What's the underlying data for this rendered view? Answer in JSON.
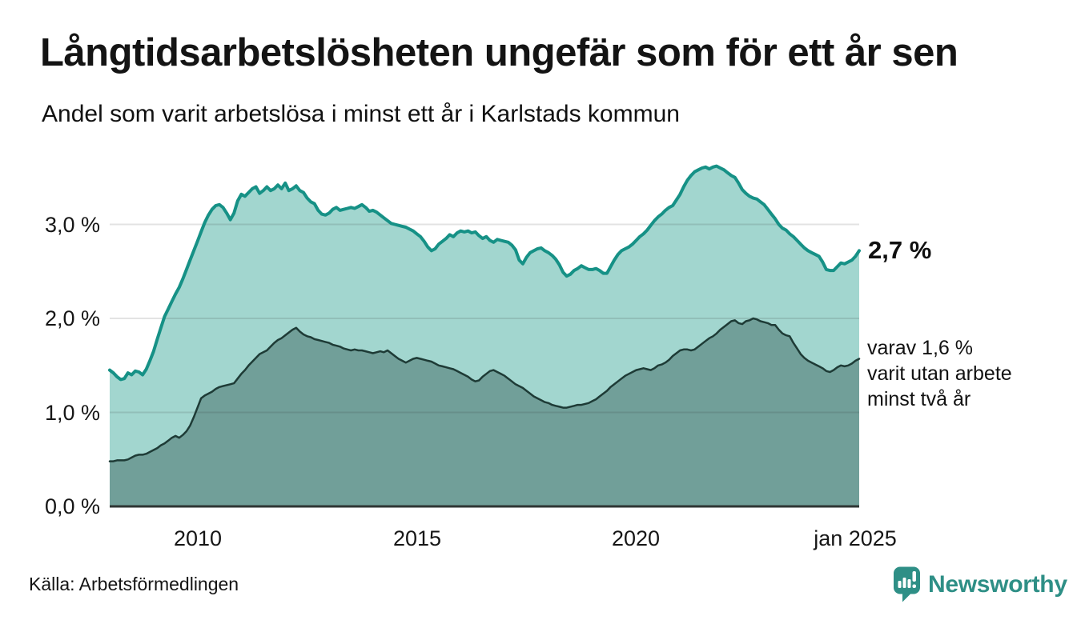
{
  "header": {
    "title": "Långtidsarbetslösheten ungefär som för ett år sen",
    "subtitle": "Andel som varit arbetslösa i minst ett år i Karlstads kommun"
  },
  "chart_data": {
    "type": "area",
    "title": "Långtidsarbetslösheten ungefär som för ett år sen",
    "subtitle": "Andel som varit arbetslösa i minst ett år i Karlstads kommun",
    "unit": "%",
    "x_axis": {
      "start_decimal_year": 2008.0,
      "points_per_year": 12,
      "tick_labels": [
        "2010",
        "2015",
        "2020",
        "jan 2025"
      ],
      "tick_decimal_years": [
        2010,
        2015,
        2020,
        2025
      ],
      "range_decimal_year": [
        2008.0,
        2025.08
      ]
    },
    "y_axis": {
      "tick_labels": [
        "0,0 %",
        "1,0 %",
        "2,0 %",
        "3,0 %"
      ],
      "tick_values": [
        0,
        1,
        2,
        3
      ],
      "range": [
        0,
        3.77
      ],
      "grid": true
    },
    "series": [
      {
        "name": "Andel arbetslösa minst ett år",
        "line_color": "#169186",
        "fill_color": "#a2d6cf",
        "end_label": "2,7 %",
        "frequency": "monthly",
        "values_pct": [
          1.45,
          1.42,
          1.38,
          1.35,
          1.36,
          1.42,
          1.4,
          1.44,
          1.43,
          1.4,
          1.46,
          1.55,
          1.65,
          1.78,
          1.9,
          2.02,
          2.1,
          2.18,
          2.26,
          2.33,
          2.42,
          2.52,
          2.62,
          2.72,
          2.82,
          2.92,
          3.02,
          3.1,
          3.16,
          3.2,
          3.21,
          3.18,
          3.12,
          3.05,
          3.12,
          3.25,
          3.32,
          3.3,
          3.34,
          3.38,
          3.4,
          3.33,
          3.36,
          3.4,
          3.36,
          3.38,
          3.42,
          3.38,
          3.44,
          3.36,
          3.38,
          3.41,
          3.36,
          3.34,
          3.28,
          3.24,
          3.22,
          3.15,
          3.11,
          3.1,
          3.12,
          3.16,
          3.18,
          3.15,
          3.16,
          3.17,
          3.18,
          3.17,
          3.19,
          3.21,
          3.18,
          3.14,
          3.15,
          3.13,
          3.1,
          3.07,
          3.04,
          3.01,
          3.0,
          2.99,
          2.98,
          2.97,
          2.95,
          2.93,
          2.9,
          2.87,
          2.82,
          2.76,
          2.72,
          2.74,
          2.79,
          2.82,
          2.85,
          2.89,
          2.87,
          2.91,
          2.93,
          2.92,
          2.93,
          2.91,
          2.92,
          2.88,
          2.85,
          2.87,
          2.83,
          2.81,
          2.84,
          2.83,
          2.82,
          2.81,
          2.78,
          2.73,
          2.62,
          2.58,
          2.65,
          2.7,
          2.72,
          2.74,
          2.75,
          2.72,
          2.7,
          2.67,
          2.63,
          2.57,
          2.49,
          2.45,
          2.47,
          2.51,
          2.53,
          2.56,
          2.54,
          2.52,
          2.52,
          2.53,
          2.51,
          2.48,
          2.48,
          2.55,
          2.62,
          2.68,
          2.72,
          2.74,
          2.76,
          2.79,
          2.83,
          2.87,
          2.9,
          2.94,
          2.99,
          3.04,
          3.08,
          3.11,
          3.15,
          3.18,
          3.2,
          3.26,
          3.32,
          3.4,
          3.47,
          3.52,
          3.56,
          3.58,
          3.6,
          3.61,
          3.59,
          3.61,
          3.62,
          3.6,
          3.58,
          3.55,
          3.52,
          3.5,
          3.44,
          3.37,
          3.33,
          3.3,
          3.28,
          3.27,
          3.24,
          3.21,
          3.16,
          3.11,
          3.06,
          3.0,
          2.96,
          2.94,
          2.9,
          2.87,
          2.83,
          2.79,
          2.75,
          2.72,
          2.7,
          2.68,
          2.66,
          2.6,
          2.52,
          2.51,
          2.51,
          2.55,
          2.59,
          2.58,
          2.6,
          2.62,
          2.66,
          2.72
        ]
      },
      {
        "name": "Andel utan arbete minst två år",
        "line_color": "#1e3b36",
        "fill_color": "#719f99",
        "end_label": "varav 1,6 % varit utan arbete minst två år",
        "frequency": "monthly",
        "values_pct": [
          0.48,
          0.48,
          0.49,
          0.49,
          0.49,
          0.5,
          0.52,
          0.54,
          0.55,
          0.55,
          0.56,
          0.58,
          0.6,
          0.62,
          0.65,
          0.67,
          0.7,
          0.73,
          0.75,
          0.73,
          0.76,
          0.8,
          0.86,
          0.95,
          1.05,
          1.15,
          1.18,
          1.2,
          1.22,
          1.25,
          1.27,
          1.28,
          1.29,
          1.3,
          1.31,
          1.36,
          1.41,
          1.45,
          1.5,
          1.54,
          1.58,
          1.62,
          1.64,
          1.66,
          1.7,
          1.74,
          1.77,
          1.79,
          1.82,
          1.85,
          1.88,
          1.9,
          1.86,
          1.83,
          1.81,
          1.8,
          1.78,
          1.77,
          1.76,
          1.75,
          1.74,
          1.72,
          1.71,
          1.7,
          1.68,
          1.67,
          1.66,
          1.67,
          1.66,
          1.66,
          1.65,
          1.64,
          1.63,
          1.64,
          1.65,
          1.64,
          1.66,
          1.63,
          1.6,
          1.57,
          1.55,
          1.53,
          1.55,
          1.57,
          1.58,
          1.57,
          1.56,
          1.55,
          1.54,
          1.52,
          1.5,
          1.49,
          1.48,
          1.47,
          1.46,
          1.44,
          1.42,
          1.4,
          1.38,
          1.35,
          1.33,
          1.34,
          1.38,
          1.41,
          1.44,
          1.45,
          1.43,
          1.41,
          1.39,
          1.36,
          1.33,
          1.3,
          1.28,
          1.26,
          1.23,
          1.2,
          1.17,
          1.15,
          1.13,
          1.11,
          1.1,
          1.08,
          1.07,
          1.06,
          1.05,
          1.05,
          1.06,
          1.07,
          1.08,
          1.08,
          1.09,
          1.1,
          1.12,
          1.14,
          1.17,
          1.2,
          1.23,
          1.27,
          1.3,
          1.33,
          1.36,
          1.39,
          1.41,
          1.43,
          1.45,
          1.46,
          1.47,
          1.46,
          1.45,
          1.47,
          1.5,
          1.51,
          1.53,
          1.56,
          1.6,
          1.63,
          1.66,
          1.67,
          1.67,
          1.66,
          1.67,
          1.7,
          1.73,
          1.76,
          1.79,
          1.81,
          1.84,
          1.88,
          1.91,
          1.94,
          1.97,
          1.98,
          1.95,
          1.94,
          1.97,
          1.98,
          2.0,
          1.99,
          1.97,
          1.96,
          1.95,
          1.93,
          1.93,
          1.88,
          1.84,
          1.82,
          1.81,
          1.74,
          1.68,
          1.62,
          1.58,
          1.55,
          1.53,
          1.51,
          1.49,
          1.47,
          1.44,
          1.43,
          1.45,
          1.48,
          1.5,
          1.49,
          1.5,
          1.52,
          1.55,
          1.57
        ]
      }
    ]
  },
  "annotations": {
    "primary_value": "2,7 %",
    "secondary_lines": [
      "varav 1,6 %",
      "varit utan arbete",
      "minst två år"
    ]
  },
  "footer": {
    "source": "Källa: Arbetsförmedlingen",
    "brand": "Newsworthy"
  },
  "colors": {
    "accent_teal": "#169186",
    "area_light": "#a2d6cf",
    "area_dark": "#719f99",
    "dark_line": "#1e3b36",
    "grid": "#e2e2e2",
    "baseline": "#2f3634",
    "text": "#141414",
    "brand_teal": "#2e8f86"
  }
}
